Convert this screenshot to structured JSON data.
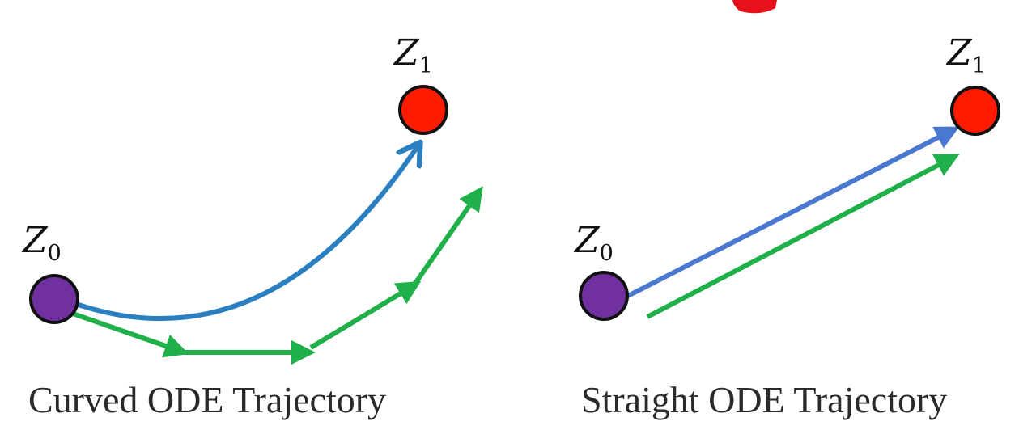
{
  "colors": {
    "start_node": "#7030a0",
    "end_node": "#ff1a00",
    "exact_path": "#2a7fc0",
    "exact_path_straight": "#4a78d0",
    "euler_steps": "#1fb04a",
    "node_outline": "#111111",
    "corner_mark": "#e8111b"
  },
  "panels": [
    {
      "caption": "Curved ODE Trajectory",
      "start_label": {
        "main": "Z",
        "sub": "0"
      },
      "end_label": {
        "main": "Z",
        "sub": "1"
      }
    },
    {
      "caption": "Straight ODE Trajectory",
      "start_label": {
        "main": "Z",
        "sub": "0"
      },
      "end_label": {
        "main": "Z",
        "sub": "1"
      }
    }
  ]
}
